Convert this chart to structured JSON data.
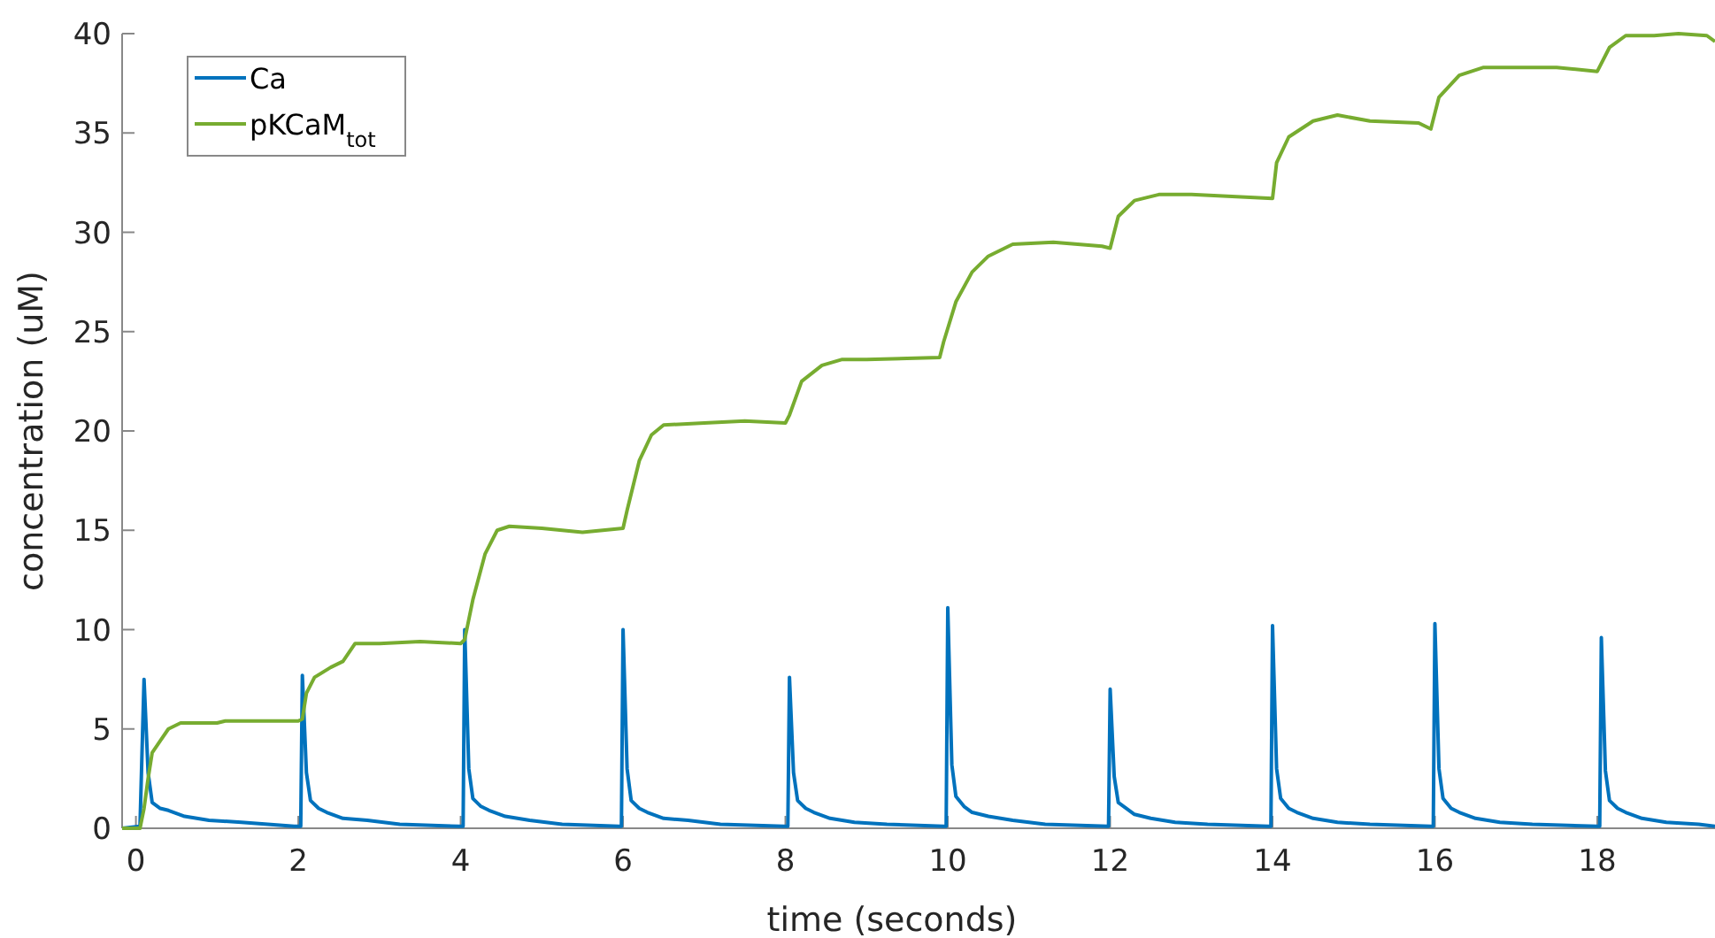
{
  "chart_data": {
    "type": "line",
    "xlabel": "time (seconds)",
    "ylabel": "concentration (uM)",
    "xlim": [
      -0.17,
      19.45
    ],
    "ylim": [
      0,
      40
    ],
    "xticks": [
      0,
      2,
      4,
      6,
      8,
      10,
      12,
      14,
      16,
      18
    ],
    "yticks": [
      0,
      5,
      10,
      15,
      20,
      25,
      30,
      35,
      40
    ],
    "grid": false,
    "legend": "top left",
    "line_style": "solid",
    "series": [
      {
        "name": "Ca",
        "color": "#0072bd",
        "x": [
          -0.17,
          0.05,
          0.1,
          0.15,
          0.2,
          0.3,
          0.4,
          0.6,
          0.9,
          1.3,
          1.95,
          2.03,
          2.05,
          2.1,
          2.15,
          2.25,
          2.35,
          2.55,
          2.85,
          3.25,
          3.98,
          4.03,
          4.05,
          4.1,
          4.15,
          4.25,
          4.35,
          4.55,
          4.85,
          5.25,
          5.95,
          5.98,
          6.0,
          6.05,
          6.1,
          6.2,
          6.3,
          6.5,
          6.8,
          7.2,
          7.98,
          8.03,
          8.05,
          8.1,
          8.15,
          8.25,
          8.35,
          8.55,
          8.85,
          9.25,
          9.95,
          9.98,
          10.0,
          10.05,
          10.1,
          10.2,
          10.3,
          10.5,
          10.8,
          11.2,
          11.97,
          11.98,
          12.0,
          12.05,
          12.1,
          12.2,
          12.3,
          12.5,
          12.8,
          13.2,
          13.95,
          13.98,
          14.0,
          14.05,
          14.1,
          14.2,
          14.3,
          14.5,
          14.8,
          15.2,
          15.95,
          15.98,
          16.0,
          16.05,
          16.1,
          16.2,
          16.3,
          16.5,
          16.8,
          17.2,
          18.0,
          18.03,
          18.05,
          18.1,
          18.15,
          18.25,
          18.35,
          18.55,
          18.85,
          19.25,
          19.45
        ],
        "values": [
          0,
          0.1,
          7.5,
          2.8,
          1.3,
          1.0,
          0.9,
          0.6,
          0.4,
          0.3,
          0.1,
          0.1,
          7.7,
          2.8,
          1.4,
          1.0,
          0.8,
          0.5,
          0.4,
          0.2,
          0.1,
          0.1,
          10.0,
          3.0,
          1.5,
          1.1,
          0.9,
          0.6,
          0.4,
          0.2,
          0.1,
          0.1,
          10.0,
          3.0,
          1.4,
          1.0,
          0.8,
          0.5,
          0.4,
          0.2,
          0.1,
          0.1,
          7.6,
          2.8,
          1.4,
          1.0,
          0.8,
          0.5,
          0.3,
          0.2,
          0.1,
          0.1,
          11.1,
          3.2,
          1.6,
          1.1,
          0.8,
          0.6,
          0.4,
          0.2,
          0.1,
          0.1,
          7.0,
          2.6,
          1.3,
          1.0,
          0.7,
          0.5,
          0.3,
          0.2,
          0.1,
          0.1,
          10.2,
          3.0,
          1.5,
          1.0,
          0.8,
          0.5,
          0.3,
          0.2,
          0.1,
          0.1,
          10.3,
          3.0,
          1.5,
          1.0,
          0.8,
          0.5,
          0.3,
          0.2,
          0.1,
          0.1,
          9.6,
          2.9,
          1.4,
          1.0,
          0.8,
          0.5,
          0.3,
          0.2,
          0.1
        ]
      },
      {
        "name": "pKCaM$_{tot}$",
        "color": "#77ac30",
        "x": [
          -0.17,
          0.05,
          0.1,
          0.15,
          0.2,
          0.3,
          0.4,
          0.55,
          1.0,
          1.1,
          2.0,
          2.05,
          2.1,
          2.2,
          2.4,
          2.55,
          2.7,
          3.0,
          3.5,
          4.0,
          4.05,
          4.15,
          4.3,
          4.45,
          4.6,
          5.0,
          5.5,
          6.0,
          6.05,
          6.2,
          6.35,
          6.5,
          7.0,
          7.5,
          8.0,
          8.05,
          8.2,
          8.45,
          8.7,
          9.0,
          9.9,
          9.95,
          10.1,
          10.3,
          10.5,
          10.8,
          11.3,
          11.9,
          12.0,
          12.1,
          12.3,
          12.6,
          13.0,
          13.5,
          14.0,
          14.05,
          14.2,
          14.5,
          14.8,
          15.2,
          15.8,
          15.95,
          16.05,
          16.3,
          16.6,
          17.5,
          18.0,
          18.15,
          18.35,
          18.7,
          19.0,
          19.35,
          19.45
        ],
        "values": [
          0,
          0,
          1,
          2.5,
          3.8,
          4.4,
          5.0,
          5.3,
          5.3,
          5.4,
          5.4,
          5.5,
          6.8,
          7.6,
          8.1,
          8.4,
          9.3,
          9.3,
          9.4,
          9.3,
          9.5,
          11.5,
          13.8,
          15.0,
          15.2,
          15.1,
          14.9,
          15.1,
          16,
          18.5,
          19.8,
          20.3,
          20.4,
          20.5,
          20.4,
          20.8,
          22.5,
          23.3,
          23.6,
          23.6,
          23.7,
          24.5,
          26.5,
          28.0,
          28.8,
          29.4,
          29.5,
          29.3,
          29.2,
          30.8,
          31.6,
          31.9,
          31.9,
          31.8,
          31.7,
          33.5,
          34.8,
          35.6,
          35.9,
          35.6,
          35.5,
          35.2,
          36.8,
          37.9,
          38.3,
          38.3,
          38.1,
          39.3,
          39.9,
          39.9,
          40.0,
          39.9,
          39.6
        ]
      }
    ]
  }
}
